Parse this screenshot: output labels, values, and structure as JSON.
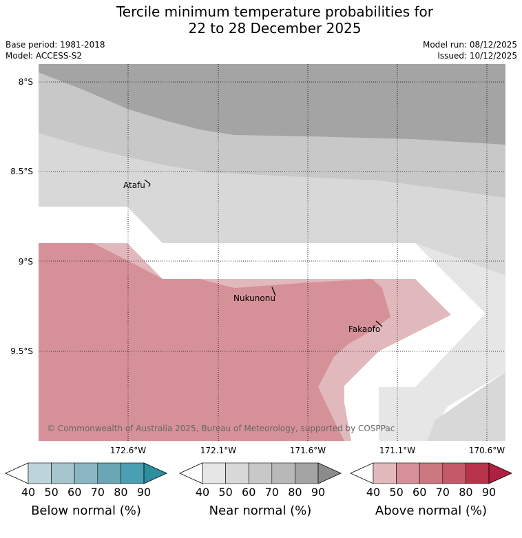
{
  "title_line1": "Tercile minimum temperature probabilities for",
  "title_line2": "22 to 28 December 2025",
  "left_meta": {
    "base_period": "Base period: 1981-2018",
    "model": "Model: ACCESS-S2"
  },
  "right_meta": {
    "model_run": "Model run: 08/12/2025",
    "issued": "Issued: 10/12/2025"
  },
  "map": {
    "lat_ticks": [
      "8°S",
      "8.5°S",
      "9°S",
      "9.5°S"
    ],
    "lon_ticks": [
      "172.6°W",
      "172.1°W",
      "171.6°W",
      "171.1°W",
      "170.6°W"
    ],
    "places": [
      "Atafu",
      "Nukunonu",
      "Fakaofo"
    ],
    "copyright": "© Commonwealth of Australia 2025, Bureau of Meteorology, supported by COSPPac"
  },
  "chart_data": {
    "type": "heatmap",
    "title": "Tercile minimum temperature probabilities for 22 to 28 December 2025",
    "xlabel": "",
    "ylabel": "",
    "x_ticks": [
      "172.6°W",
      "172.1°W",
      "171.6°W",
      "171.1°W",
      "170.6°W"
    ],
    "y_ticks": [
      "8°S",
      "8.5°S",
      "9°S",
      "9.5°S"
    ],
    "colorbars": [
      {
        "label": "Below normal (%)",
        "ticks": [
          40,
          50,
          60,
          70,
          80,
          90
        ],
        "colors": [
          "#bdd4da",
          "#a6c5cc",
          "#8ab6c1",
          "#6aa6b5",
          "#4aa0b2",
          "#2c8e9f"
        ]
      },
      {
        "label": "Near normal (%)",
        "ticks": [
          40,
          50,
          60,
          70,
          80,
          90
        ],
        "colors": [
          "#e6e6e6",
          "#d8d8d8",
          "#c8c8c8",
          "#b8b8b8",
          "#a4a4a4",
          "#8c8c8c"
        ]
      },
      {
        "label": "Above normal (%)",
        "ticks": [
          40,
          50,
          60,
          70,
          80,
          90
        ],
        "colors": [
          "#e1b9bc",
          "#d69198",
          "#cd7780",
          "#c45a68",
          "#b8324a",
          "#b02040"
        ]
      }
    ]
  }
}
